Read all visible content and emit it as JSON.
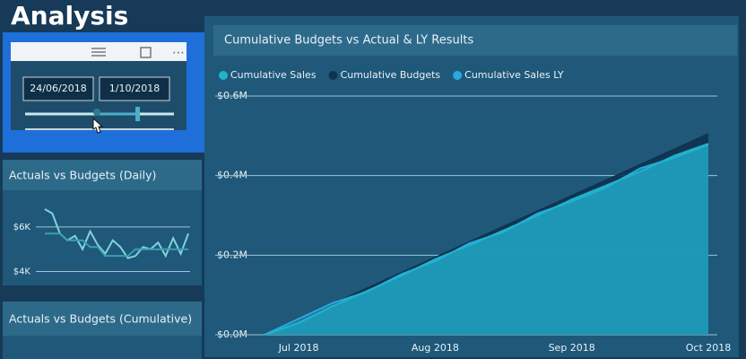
{
  "header": {
    "title": "Analysis"
  },
  "slicer": {
    "start": "24/06/2018",
    "end": "1/10/2018"
  },
  "chart_data": [
    {
      "type": "area",
      "title": "Cumulative Budgets vs Actual & LY Results",
      "categories": [
        null,
        "Jul 2018",
        null,
        null,
        null,
        "Aug 2018",
        null,
        null,
        null,
        "Sep 2018",
        null,
        null,
        null,
        "Oct 2018"
      ],
      "series": [
        {
          "name": "Cumulative Sales",
          "color": "#1fb5c9",
          "values": [
            0,
            30000,
            72000,
            110000,
            148000,
            190000,
            225000,
            262000,
            300000,
            340000,
            375000,
            410000,
            450000,
            480000
          ]
        },
        {
          "name": "Cumulative Budgets",
          "color": "#0e3350",
          "values": [
            0,
            38800,
            77600,
            116400,
            155200,
            194000,
            232800,
            271600,
            310400,
            349200,
            388000,
            426800,
            465600,
            504400
          ]
        },
        {
          "name": "Cumulative Sales LY",
          "color": "#2aa8e0",
          "values": [
            0,
            40000,
            80000,
            108000,
            152000,
            185000,
            230000,
            258000,
            305000,
            335000,
            370000,
            418000,
            445000,
            478000
          ]
        }
      ],
      "ylim": [
        0,
        600000
      ],
      "yticks": [
        {
          "value": 0,
          "label": "$0.0M"
        },
        {
          "value": 200000,
          "label": "$0.2M"
        },
        {
          "value": 400000,
          "label": "$0.4M"
        },
        {
          "value": 600000,
          "label": "$0.6M"
        }
      ],
      "grid": true,
      "legend": "top"
    },
    {
      "type": "line",
      "title": "Actuals vs Budgets (Daily)",
      "series": [
        {
          "color": "#7fd3dc",
          "values": [
            6800,
            6600,
            5700,
            5400,
            5600,
            5000,
            5800,
            5200,
            4800,
            5400,
            5100,
            4600,
            4700,
            5100,
            5000,
            5300,
            4700,
            5500,
            4800,
            5700
          ]
        },
        {
          "color": "#3a9fb0",
          "values": [
            5700,
            5700,
            5700,
            5400,
            5400,
            5400,
            5100,
            5100,
            4700,
            4700,
            4700,
            4700,
            5000,
            5000,
            5000,
            5000,
            5000,
            5000,
            5000,
            5000
          ]
        }
      ],
      "ylim": [
        3700,
        7000
      ],
      "yticks": [
        {
          "value": 4000,
          "label": "$4K"
        },
        {
          "value": 6000,
          "label": "$6K"
        }
      ],
      "grid": true
    },
    {
      "type": "line",
      "title": "Actuals vs Budgets (Cumulative)"
    }
  ]
}
